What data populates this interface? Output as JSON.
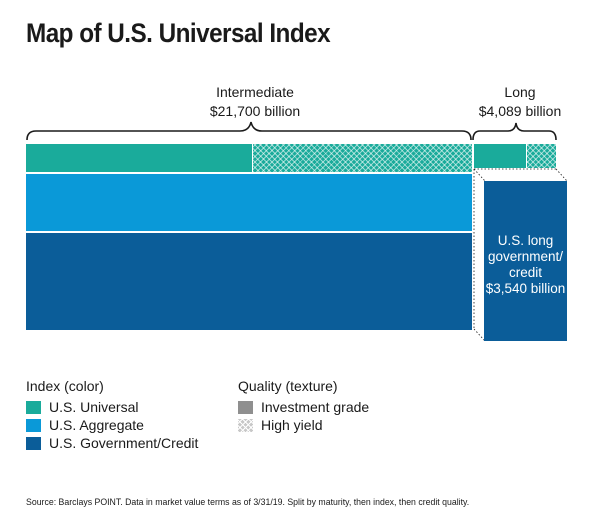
{
  "title": "Map of U.S. Universal Index",
  "groups": [
    {
      "name": "Intermediate",
      "value": "$21,700 billion"
    },
    {
      "name": "Long",
      "value": "$4,089 billion"
    }
  ],
  "long_block": {
    "lines": [
      "U.S. long",
      "government/",
      "credit",
      "$3,540 billion"
    ]
  },
  "legend": {
    "index_title": "Index (color)",
    "index_items": [
      "U.S. Universal",
      "U.S. Aggregate",
      "U.S. Government/Credit"
    ],
    "quality_title": "Quality (texture)",
    "quality_items": [
      "Investment grade",
      "High yield"
    ]
  },
  "colors": {
    "universal": "#1aab9b",
    "aggregate": "#0a99d8",
    "government_credit": "#0b5d99"
  },
  "source": "Source: Barclays POINT. Data in market value terms as of 3/31/19. Split by maturity, then index, then credit quality."
}
